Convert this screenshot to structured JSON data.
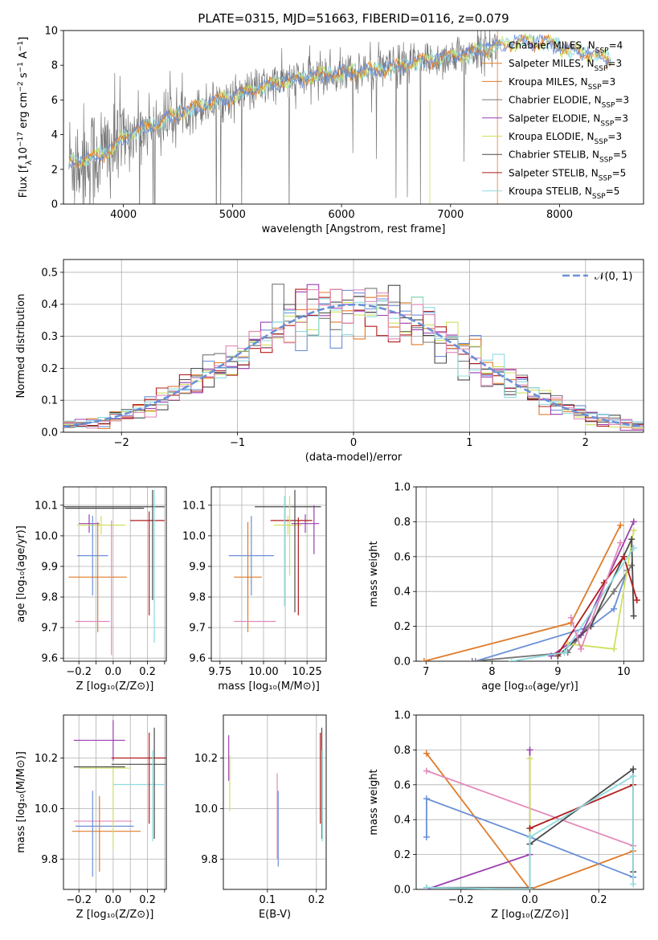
{
  "palette": {
    "blue": "#6a8fd8",
    "orange": "#e07b2a",
    "gray": "#777777",
    "purple": "#9b3fb0",
    "yellowgreen": "#cfe060",
    "darkgray": "#4a4a4a",
    "red": "#b01c1c",
    "cyan": "#8fdbe0",
    "pink": "#e08aba",
    "grid": "#b0b0b0"
  },
  "chart_data": [
    {
      "id": "spectrum",
      "type": "line",
      "title": "PLATE=0315, MJD=51663, FIBERID=0116, z=0.079",
      "xlabel": "wavelength [Angstrom, rest frame]",
      "ylabel_parts": [
        "Flux [f",
        "λ",
        "10",
        "−17",
        " erg cm",
        "−2",
        " s",
        "−1",
        " A",
        "−1",
        "]"
      ],
      "xlim": [
        3450,
        8770
      ],
      "ylim": [
        0,
        10
      ],
      "xticks": [
        4000,
        5000,
        6000,
        7000,
        8000
      ],
      "yticks": [
        0,
        2,
        4,
        6,
        8,
        10
      ],
      "grid": false,
      "legend_position": "upper-right",
      "legend": [
        {
          "name": "Chabrier MILES, N",
          "sub": "SSP",
          "tail": "=4",
          "color": "#6a8fd8"
        },
        {
          "name": "Salpeter MILES, N",
          "sub": "SSP",
          "tail": "=3",
          "color": "#e07b2a"
        },
        {
          "name": "Kroupa MILES, N",
          "sub": "SSP",
          "tail": "=3",
          "color": "#e07b2a"
        },
        {
          "name": "Chabrier ELODIE, N",
          "sub": "SSP",
          "tail": "=3",
          "color": "#777777"
        },
        {
          "name": "Salpeter ELODIE, N",
          "sub": "SSP",
          "tail": "=3",
          "color": "#9b3fb0"
        },
        {
          "name": "Kroupa ELODIE, N",
          "sub": "SSP",
          "tail": "=3",
          "color": "#cfe060"
        },
        {
          "name": "Chabrier STELIB, N",
          "sub": "SSP",
          "tail": "=5",
          "color": "#4a4a4a"
        },
        {
          "name": "Salpeter STELIB, N",
          "sub": "SSP",
          "tail": "=5",
          "color": "#b01c1c"
        },
        {
          "name": "Kroupa STELIB, N",
          "sub": "SSP",
          "tail": "=5",
          "color": "#8fdbe0"
        }
      ],
      "continuum_points": [
        [
          3500,
          2.5
        ],
        [
          3700,
          2.6
        ],
        [
          3900,
          3.2
        ],
        [
          4000,
          3.8
        ],
        [
          4100,
          4.2
        ],
        [
          4300,
          4.6
        ],
        [
          4500,
          5.2
        ],
        [
          4700,
          5.6
        ],
        [
          4900,
          6.0
        ],
        [
          5100,
          6.4
        ],
        [
          5300,
          6.8
        ],
        [
          5500,
          7.1
        ],
        [
          5700,
          7.3
        ],
        [
          5900,
          7.5
        ],
        [
          6100,
          7.6
        ],
        [
          6300,
          7.7
        ],
        [
          6500,
          7.9
        ],
        [
          6700,
          8.2
        ],
        [
          6900,
          8.4
        ],
        [
          7100,
          8.6
        ],
        [
          7300,
          8.9
        ],
        [
          7500,
          9.2
        ],
        [
          7700,
          9.4
        ],
        [
          7900,
          9.3
        ],
        [
          8100,
          8.9
        ],
        [
          8300,
          8.6
        ],
        [
          8500,
          8.3
        ]
      ],
      "observed_end": 7430,
      "model_end": 8470
    },
    {
      "id": "residuals",
      "type": "histogram",
      "xlabel": "(data-model)/error",
      "ylabel": "Normed distribution",
      "xlim": [
        -2.5,
        2.5
      ],
      "ylim": [
        0,
        0.54
      ],
      "xticks": [
        -2,
        -1,
        0,
        1,
        2
      ],
      "yticks": [
        0.0,
        0.1,
        0.2,
        0.3,
        0.4,
        0.5
      ],
      "grid": true,
      "legend_position": "upper-right",
      "legend_label": "𝒩(0, 1)",
      "normal_color": "#6a8fd8",
      "bin_width": 0.1,
      "series_colors": [
        "#6a8fd8",
        "#e07b2a",
        "#777777",
        "#9b3fb0",
        "#cfe060",
        "#4a4a4a",
        "#b01c1c",
        "#8fdbe0",
        "#e08aba"
      ]
    },
    {
      "id": "z-age",
      "type": "errorbar",
      "xlabel": "Z [log₁₀(Z/Z⊙)]",
      "ylabel": "age  [log₁₀(age/yr)]",
      "xlim": [
        -0.29,
        0.31
      ],
      "ylim": [
        9.59,
        10.16
      ],
      "xticks": [
        -0.2,
        -0.1,
        0.0,
        0.1,
        0.2,
        0.3
      ],
      "xticklabels": [
        "−0.2",
        "",
        "0.0",
        "",
        "0.2",
        ""
      ],
      "yticks": [
        9.6,
        9.7,
        9.8,
        9.9,
        10.0,
        10.1
      ],
      "grid": true,
      "points": [
        {
          "x": -0.05,
          "xerr": 0.23,
          "y": 10.09,
          "yerr": 0.0,
          "c": "#4a4a4a"
        },
        {
          "x": 0.0,
          "xerr": 0.3,
          "y": 10.095,
          "yerr": 0.0,
          "c": "#4a4a4a"
        },
        {
          "x": -0.14,
          "xerr": 0.06,
          "y": 10.04,
          "yerr": 0.03,
          "c": "#9b3fb0"
        },
        {
          "x": -0.07,
          "xerr": 0.14,
          "y": 10.035,
          "yerr": 0.03,
          "c": "#cfe060"
        },
        {
          "x": -0.12,
          "xerr": 0.09,
          "y": 9.935,
          "yerr": 0.13,
          "c": "#6a8fd8"
        },
        {
          "x": -0.09,
          "xerr": 0.17,
          "y": 9.865,
          "yerr": 0.18,
          "c": "#e07b2a"
        },
        {
          "x": -0.12,
          "xerr": 0.1,
          "y": 9.72,
          "yerr": 0.0,
          "c": "#e08aba"
        },
        {
          "x": 0.2,
          "xerr": 0.1,
          "y": 10.05,
          "yerr": 0.0,
          "c": "#b01c1c"
        },
        {
          "x": 0.21,
          "xerr": 0.0,
          "y": 9.91,
          "yerr": 0.17,
          "c": "#b01c1c"
        },
        {
          "x": 0.23,
          "xerr": 0.0,
          "y": 9.97,
          "yerr": 0.18,
          "c": "#4a4a4a"
        },
        {
          "x": 0.24,
          "xerr": 0.0,
          "y": 9.9,
          "yerr": 0.25,
          "c": "#8fdbe0"
        },
        {
          "x": -0.01,
          "xerr": 0.0,
          "y": 9.83,
          "yerr": 0.22,
          "c": "#e08aba"
        }
      ]
    },
    {
      "id": "mass-age",
      "type": "errorbar",
      "xlabel": "mass [log₁₀(M/M⊙)]",
      "ylabel": "",
      "xlim": [
        9.7,
        10.36
      ],
      "ylim": [
        9.59,
        10.16
      ],
      "xticks": [
        9.75,
        9.875,
        10.0,
        10.125,
        10.25,
        10.375
      ],
      "xticklabels": [
        "9.75",
        "",
        "10.00",
        "",
        "10.25",
        ""
      ],
      "yticks": [
        9.6,
        9.7,
        9.8,
        9.9,
        10.0,
        10.1
      ],
      "grid": true,
      "points": [
        {
          "x": 10.14,
          "xerr": 0.19,
          "y": 10.095,
          "yerr": 0.0,
          "c": "#4a4a4a"
        },
        {
          "x": 10.24,
          "xerr": 0.08,
          "y": 10.04,
          "yerr": 0.03,
          "c": "#9b3fb0"
        },
        {
          "x": 10.14,
          "xerr": 0.08,
          "y": 10.035,
          "yerr": 0.03,
          "c": "#cfe060"
        },
        {
          "x": 10.16,
          "xerr": 0.12,
          "y": 10.05,
          "yerr": 0.0,
          "c": "#b01c1c"
        },
        {
          "x": 9.93,
          "xerr": 0.13,
          "y": 9.935,
          "yerr": 0.13,
          "c": "#6a8fd8"
        },
        {
          "x": 9.91,
          "xerr": 0.08,
          "y": 9.865,
          "yerr": 0.18,
          "c": "#e07b2a"
        },
        {
          "x": 9.95,
          "xerr": 0.12,
          "y": 9.72,
          "yerr": 0.0,
          "c": "#e08aba"
        },
        {
          "x": 10.12,
          "xerr": 0.0,
          "y": 9.95,
          "yerr": 0.18,
          "c": "#8fdbe0"
        },
        {
          "x": 10.2,
          "xerr": 0.0,
          "y": 9.9,
          "yerr": 0.16,
          "c": "#b01c1c"
        },
        {
          "x": 10.18,
          "xerr": 0.0,
          "y": 9.95,
          "yerr": 0.2,
          "c": "#4a4a4a"
        },
        {
          "x": 10.29,
          "xerr": 0.0,
          "y": 10.02,
          "yerr": 0.08,
          "c": "#9b3fb0"
        },
        {
          "x": 10.15,
          "xerr": 0.0,
          "y": 10.0,
          "yerr": 0.13,
          "c": "#cfe060"
        }
      ]
    },
    {
      "id": "age-weight",
      "type": "line",
      "xlabel": "age  [log₁₀(age/yr)]",
      "ylabel": "mass weight",
      "xlim": [
        6.85,
        10.3
      ],
      "ylim": [
        0,
        1.0
      ],
      "xticks": [
        7,
        8,
        9,
        10
      ],
      "yticks": [
        0.0,
        0.2,
        0.4,
        0.6,
        0.8,
        1.0
      ],
      "grid": true,
      "series": [
        {
          "c": "#e07b2a",
          "pts": [
            [
              6.97,
              0.0
            ],
            [
              9.2,
              0.22
            ],
            [
              9.95,
              0.78
            ]
          ]
        },
        {
          "c": "#6a8fd8",
          "pts": [
            [
              7.75,
              0.0
            ],
            [
              9.5,
              0.2
            ],
            [
              9.85,
              0.3
            ],
            [
              10.05,
              0.52
            ]
          ]
        },
        {
          "c": "#777777",
          "pts": [
            [
              7.7,
              0.0
            ],
            [
              9.15,
              0.05
            ],
            [
              9.85,
              0.4
            ],
            [
              10.12,
              0.55
            ]
          ]
        },
        {
          "c": "#9b3fb0",
          "pts": [
            [
              8.9,
              0.03
            ],
            [
              9.35,
              0.15
            ],
            [
              10.15,
              0.8
            ]
          ]
        },
        {
          "c": "#cfe060",
          "pts": [
            [
              9.15,
              0.1
            ],
            [
              9.85,
              0.07
            ],
            [
              10.15,
              0.75
            ]
          ]
        },
        {
          "c": "#4a4a4a",
          "pts": [
            [
              9.0,
              0.03
            ],
            [
              9.5,
              0.2
            ],
            [
              10.12,
              0.7
            ],
            [
              10.15,
              0.26
            ]
          ]
        },
        {
          "c": "#b01c1c",
          "pts": [
            [
              9.0,
              0.04
            ],
            [
              9.7,
              0.45
            ],
            [
              10.0,
              0.6
            ],
            [
              10.2,
              0.35
            ]
          ]
        },
        {
          "c": "#8fdbe0",
          "pts": [
            [
              8.3,
              0.0
            ],
            [
              9.1,
              0.05
            ],
            [
              10.15,
              0.65
            ]
          ]
        },
        {
          "c": "#e08aba",
          "pts": [
            [
              9.2,
              0.25
            ],
            [
              9.35,
              0.07
            ],
            [
              9.95,
              0.68
            ]
          ]
        }
      ]
    },
    {
      "id": "z-mass",
      "type": "errorbar",
      "xlabel": "Z [log₁₀(Z/Z⊙)]",
      "ylabel": "mass [log₁₀(M/M⊙)]",
      "xlim": [
        -0.29,
        0.31
      ],
      "ylim": [
        9.68,
        10.37
      ],
      "xticks": [
        -0.2,
        -0.1,
        0.0,
        0.1,
        0.2,
        0.3
      ],
      "xticklabels": [
        "−0.2",
        "",
        "0.0",
        "",
        "0.2",
        ""
      ],
      "yticks": [
        9.8,
        10.0,
        10.2
      ],
      "grid": true,
      "points": [
        {
          "x": -0.08,
          "xerr": 0.15,
          "y": 10.27,
          "yerr": 0.0,
          "c": "#9b3fb0"
        },
        {
          "x": 0.0,
          "xerr": 0.0,
          "y": 10.27,
          "yerr": 0.08,
          "c": "#9b3fb0"
        },
        {
          "x": -0.08,
          "xerr": 0.15,
          "y": 10.165,
          "yerr": 0.0,
          "c": "#4a4a4a"
        },
        {
          "x": -0.05,
          "xerr": 0.15,
          "y": 10.16,
          "yerr": 0.0,
          "c": "#cfe060"
        },
        {
          "x": 0.15,
          "xerr": 0.16,
          "y": 10.2,
          "yerr": 0.0,
          "c": "#b01c1c"
        },
        {
          "x": 0.15,
          "xerr": 0.16,
          "y": 10.175,
          "yerr": 0.0,
          "c": "#4a4a4a"
        },
        {
          "x": 0.15,
          "xerr": 0.15,
          "y": 10.095,
          "yerr": 0.0,
          "c": "#8fdbe0"
        },
        {
          "x": -0.06,
          "xerr": 0.17,
          "y": 9.95,
          "yerr": 0.0,
          "c": "#e08aba"
        },
        {
          "x": -0.05,
          "xerr": 0.17,
          "y": 9.93,
          "yerr": 0.0,
          "c": "#6a8fd8"
        },
        {
          "x": -0.04,
          "xerr": 0.2,
          "y": 9.91,
          "yerr": 0.0,
          "c": "#e07b2a"
        },
        {
          "x": -0.12,
          "xerr": 0.0,
          "y": 9.9,
          "yerr": 0.17,
          "c": "#6a8fd8"
        },
        {
          "x": -0.08,
          "xerr": 0.0,
          "y": 9.9,
          "yerr": 0.15,
          "c": "#e07b2a"
        },
        {
          "x": 0.0,
          "xerr": 0.0,
          "y": 10.0,
          "yerr": 0.16,
          "c": "#cfe060"
        },
        {
          "x": 0.21,
          "xerr": 0.0,
          "y": 10.12,
          "yerr": 0.18,
          "c": "#b01c1c"
        },
        {
          "x": 0.24,
          "xerr": 0.0,
          "y": 10.1,
          "yerr": 0.22,
          "c": "#4a4a4a"
        },
        {
          "x": 0.23,
          "xerr": 0.0,
          "y": 10.05,
          "yerr": 0.18,
          "c": "#8fdbe0"
        }
      ]
    },
    {
      "id": "ebv-mass",
      "type": "errorbar",
      "xlabel": "E(B-V)",
      "ylabel": "",
      "xlim": [
        0.01,
        0.22
      ],
      "ylim": [
        9.68,
        10.37
      ],
      "xticks": [
        0.1,
        0.2
      ],
      "xticklabels": [
        "0.1",
        "0.2"
      ],
      "yticks": [
        9.8,
        10.0,
        10.2
      ],
      "grid": true,
      "points": [
        {
          "x": 0.021,
          "xerr": 0.0,
          "y": 10.2,
          "yerr": 0.09,
          "c": "#9b3fb0"
        },
        {
          "x": 0.023,
          "xerr": 0.0,
          "y": 10.1,
          "yerr": 0.11,
          "c": "#cfe060"
        },
        {
          "x": 0.12,
          "xerr": 0.0,
          "y": 9.97,
          "yerr": 0.17,
          "c": "#e08aba"
        },
        {
          "x": 0.122,
          "xerr": 0.0,
          "y": 9.92,
          "yerr": 0.15,
          "c": "#6a8fd8"
        },
        {
          "x": 0.208,
          "xerr": 0.0,
          "y": 10.12,
          "yerr": 0.18,
          "c": "#b01c1c"
        },
        {
          "x": 0.211,
          "xerr": 0.0,
          "y": 10.1,
          "yerr": 0.22,
          "c": "#4a4a4a"
        },
        {
          "x": 0.212,
          "xerr": 0.0,
          "y": 10.05,
          "yerr": 0.18,
          "c": "#8fdbe0"
        }
      ]
    },
    {
      "id": "z-weight",
      "type": "line",
      "xlabel": "Z [log₁₀(Z/Z⊙)]",
      "ylabel": "mass weight",
      "xlim": [
        -0.33,
        0.33
      ],
      "ylim": [
        0,
        1.0
      ],
      "xticks": [
        -0.2,
        0.0,
        0.2
      ],
      "xticklabels": [
        "−0.2",
        "0.0",
        "0.2"
      ],
      "yticks": [
        0.0,
        0.2,
        0.4,
        0.6,
        0.8,
        1.0
      ],
      "grid": true,
      "series": [
        {
          "c": "#e07b2a",
          "pts": [
            [
              -0.3,
              0.78
            ],
            [
              0.0,
              0.0
            ],
            [
              0.3,
              0.22
            ]
          ]
        },
        {
          "c": "#6a8fd8",
          "pts": [
            [
              -0.3,
              0.3
            ],
            [
              -0.3,
              0.52
            ],
            [
              0.0,
              0.3
            ],
            [
              0.3,
              0.07
            ]
          ]
        },
        {
          "c": "#e08aba",
          "pts": [
            [
              -0.3,
              0.68
            ],
            [
              0.3,
              0.25
            ]
          ]
        },
        {
          "c": "#9b3fb0",
          "pts": [
            [
              -0.3,
              0.0
            ],
            [
              0.0,
              0.2
            ],
            [
              0.0,
              0.8
            ]
          ]
        },
        {
          "c": "#cfe060",
          "pts": [
            [
              0.0,
              0.75
            ],
            [
              0.0,
              0.0
            ]
          ]
        },
        {
          "c": "#777777",
          "pts": [
            [
              -0.3,
              0.01
            ],
            [
              0.0,
              0.01
            ],
            [
              0.0,
              0.3
            ]
          ]
        },
        {
          "c": "#4a4a4a",
          "pts": [
            [
              0.0,
              0.26
            ],
            [
              0.3,
              0.69
            ],
            [
              0.3,
              0.1
            ]
          ]
        },
        {
          "c": "#b01c1c",
          "pts": [
            [
              0.0,
              0.35
            ],
            [
              0.3,
              0.6
            ]
          ]
        },
        {
          "c": "#8fdbe0",
          "pts": [
            [
              -0.3,
              0.01
            ],
            [
              0.0,
              0.0
            ],
            [
              0.0,
              0.3
            ],
            [
              0.3,
              0.65
            ],
            [
              0.3,
              0.03
            ]
          ]
        }
      ]
    }
  ]
}
